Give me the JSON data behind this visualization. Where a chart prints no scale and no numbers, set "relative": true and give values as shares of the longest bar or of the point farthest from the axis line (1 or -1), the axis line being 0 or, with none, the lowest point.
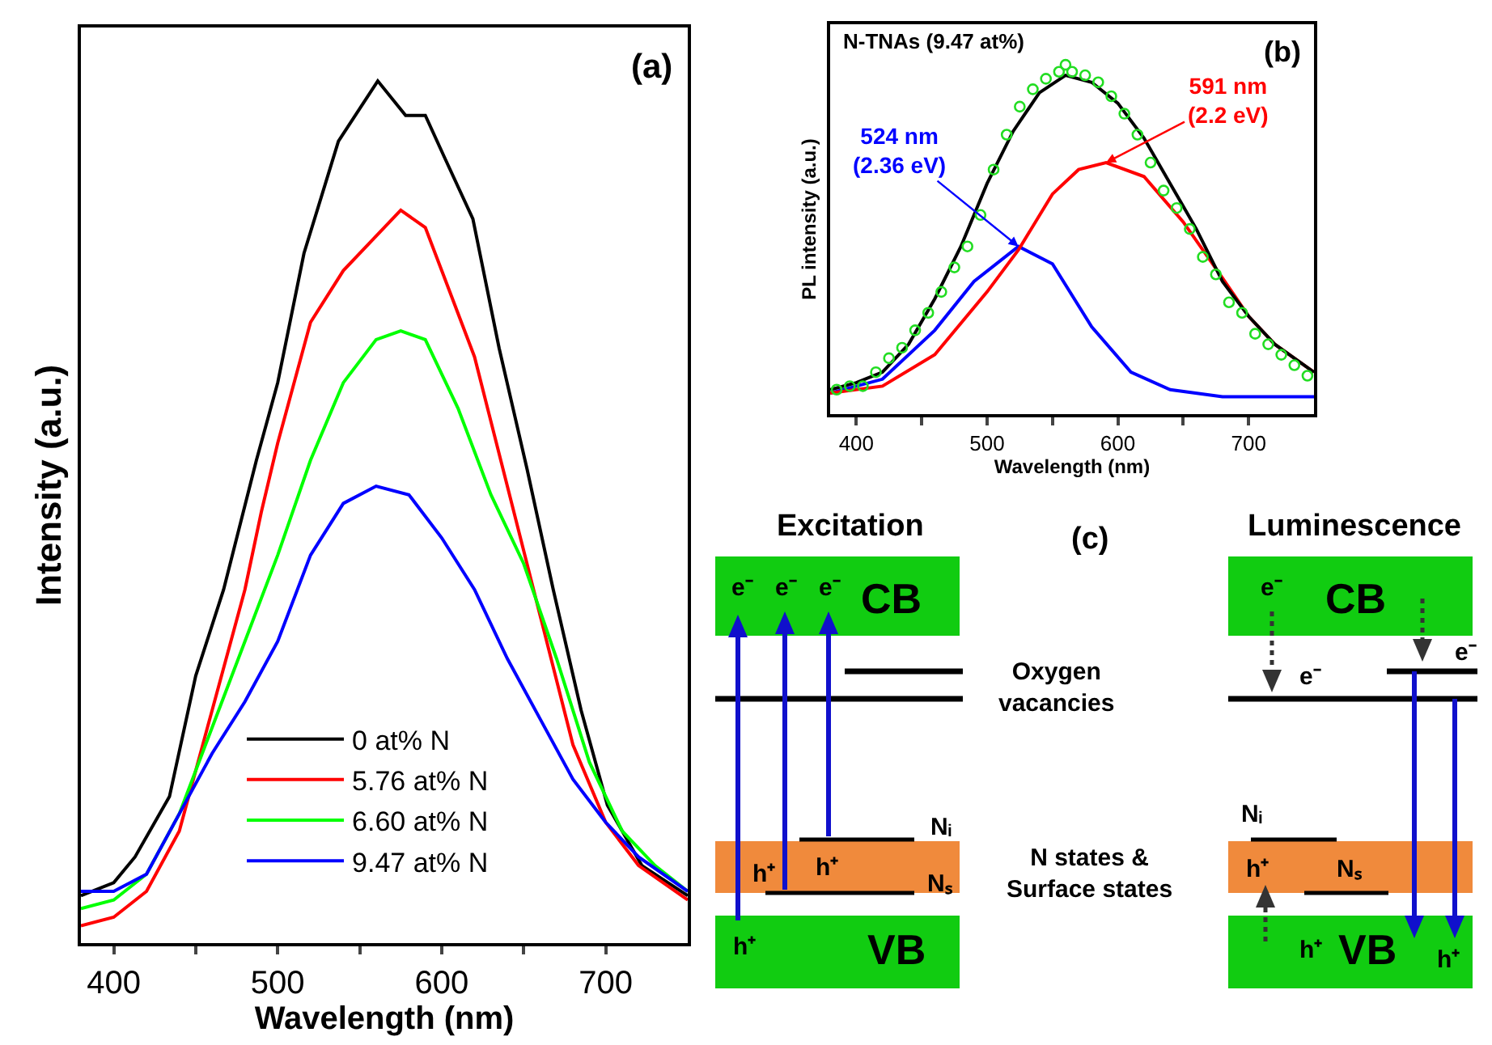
{
  "chart_data": [
    {
      "type": "line",
      "relative": true,
      "xlabel": "Wavelength (nm)",
      "ylabel": "Intensity (a.u.)",
      "xlim": [
        380,
        750
      ],
      "xticks": [
        400,
        {
          "value": 450,
          "label": null
        },
        500,
        {
          "value": 550,
          "label": null
        },
        600,
        {
          "value": 650,
          "label": null
        },
        700
      ],
      "tick_labels": "x",
      "legend": "bottom",
      "annotations": [
        "(a)"
      ],
      "series": [
        {
          "name": "0 at% N",
          "color": "#000000",
          "x": [
            380,
            400,
            413,
            434,
            450,
            467,
            487,
            500,
            516,
            537,
            561,
            578,
            590,
            602,
            619,
            635,
            652,
            668,
            685,
            701,
            722,
            750
          ],
          "values": [
            0.055,
            0.07,
            0.1,
            0.17,
            0.31,
            0.41,
            0.56,
            0.65,
            0.8,
            0.93,
            1.0,
            0.96,
            0.96,
            0.91,
            0.84,
            0.69,
            0.55,
            0.41,
            0.27,
            0.16,
            0.09,
            0.055
          ]
        },
        {
          "name": "5.76 at% N",
          "color": "#ff0000",
          "x": [
            380,
            400,
            420,
            440,
            460,
            480,
            490,
            500,
            520,
            540,
            560,
            575,
            590,
            600,
            620,
            640,
            660,
            680,
            700,
            720,
            750
          ],
          "values": [
            0.02,
            0.03,
            0.06,
            0.13,
            0.27,
            0.41,
            0.5,
            0.58,
            0.72,
            0.78,
            0.82,
            0.85,
            0.83,
            0.78,
            0.68,
            0.53,
            0.38,
            0.23,
            0.14,
            0.09,
            0.05
          ]
        },
        {
          "name": "6.60 at% N",
          "color": "#00ff00",
          "x": [
            380,
            400,
            420,
            440,
            460,
            480,
            500,
            520,
            540,
            560,
            575,
            590,
            610,
            630,
            650,
            670,
            690,
            710,
            730,
            750
          ],
          "values": [
            0.04,
            0.05,
            0.08,
            0.15,
            0.25,
            0.35,
            0.45,
            0.56,
            0.65,
            0.7,
            0.71,
            0.7,
            0.62,
            0.52,
            0.44,
            0.33,
            0.21,
            0.13,
            0.09,
            0.06
          ]
        },
        {
          "name": "9.47 at% N",
          "color": "#0000ff",
          "x": [
            380,
            400,
            420,
            440,
            460,
            480,
            500,
            520,
            540,
            560,
            580,
            600,
            620,
            640,
            660,
            680,
            700,
            720,
            750
          ],
          "values": [
            0.06,
            0.06,
            0.08,
            0.15,
            0.22,
            0.28,
            0.35,
            0.45,
            0.51,
            0.53,
            0.52,
            0.47,
            0.41,
            0.33,
            0.26,
            0.19,
            0.14,
            0.1,
            0.06
          ]
        }
      ]
    },
    {
      "type": "line",
      "relative": true,
      "xlabel": "Wavelength (nm)",
      "ylabel": "PL intensity (a.u.)",
      "xlim": [
        380,
        750
      ],
      "xticks": [
        400,
        {
          "value": 450,
          "label": null
        },
        500,
        {
          "value": 550,
          "label": null
        },
        600,
        {
          "value": 650,
          "label": null
        },
        700
      ],
      "tick_labels": "x",
      "legend": false,
      "annotations": [
        "N-TNAs (9.47 at%)",
        "(b)",
        {
          "text": "524 nm\n(2.36 eV)",
          "x": 524,
          "y": 0.48
        },
        {
          "text": "591 nm\n(2.2 eV)",
          "x": 591,
          "y": 0.72
        }
      ],
      "series": [
        {
          "type": "scatter",
          "marker": "circle",
          "color": "#22dd22",
          "x": [
            385,
            395,
            405,
            415,
            425,
            435,
            445,
            455,
            465,
            475,
            485,
            495,
            505,
            515,
            525,
            535,
            545,
            555,
            560,
            565,
            575,
            585,
            595,
            605,
            615,
            625,
            635,
            645,
            655,
            665,
            675,
            685,
            695,
            705,
            715,
            725,
            735,
            745
          ],
          "values": [
            0.07,
            0.08,
            0.08,
            0.12,
            0.16,
            0.19,
            0.24,
            0.29,
            0.35,
            0.42,
            0.48,
            0.57,
            0.7,
            0.8,
            0.88,
            0.93,
            0.96,
            0.98,
            1.0,
            0.98,
            0.97,
            0.95,
            0.91,
            0.86,
            0.8,
            0.72,
            0.64,
            0.59,
            0.53,
            0.45,
            0.4,
            0.32,
            0.29,
            0.23,
            0.2,
            0.17,
            0.14,
            0.11
          ]
        },
        {
          "color": "#0000ff",
          "x": [
            380,
            420,
            460,
            490,
            524,
            550,
            580,
            610,
            640,
            680,
            750
          ],
          "values": [
            0.06,
            0.1,
            0.24,
            0.38,
            0.48,
            0.43,
            0.25,
            0.12,
            0.07,
            0.05,
            0.05
          ]
        },
        {
          "color": "#ff0000",
          "x": [
            380,
            420,
            460,
            500,
            524,
            550,
            570,
            591,
            620,
            650,
            680,
            700,
            720,
            750
          ],
          "values": [
            0.06,
            0.08,
            0.17,
            0.35,
            0.47,
            0.63,
            0.7,
            0.72,
            0.68,
            0.55,
            0.39,
            0.28,
            0.2,
            0.12
          ]
        },
        {
          "color": "#000000",
          "x": [
            380,
            400,
            420,
            440,
            460,
            480,
            500,
            520,
            540,
            560,
            580,
            600,
            620,
            640,
            660,
            680,
            700,
            720,
            750
          ],
          "values": [
            0.07,
            0.09,
            0.12,
            0.2,
            0.33,
            0.48,
            0.66,
            0.81,
            0.92,
            0.97,
            0.95,
            0.89,
            0.79,
            0.66,
            0.53,
            0.38,
            0.28,
            0.2,
            0.12
          ]
        }
      ]
    },
    {
      "type": "other",
      "annotations": [
        "Excitation",
        "(c)",
        "Luminescence",
        "CB",
        "CB",
        "VB",
        "VB",
        "Oxygen\nvacancies",
        "N states &\nSurface states",
        "e⁻",
        "e⁻",
        "e⁻",
        "h⁺",
        "h⁺",
        "h⁺",
        "Nᵢ",
        "Nₛ",
        "e⁻",
        "e⁻",
        "e⁻",
        "h⁺",
        "h⁺",
        "h⁺",
        "Nᵢ",
        "Nₛ"
      ]
    }
  ]
}
